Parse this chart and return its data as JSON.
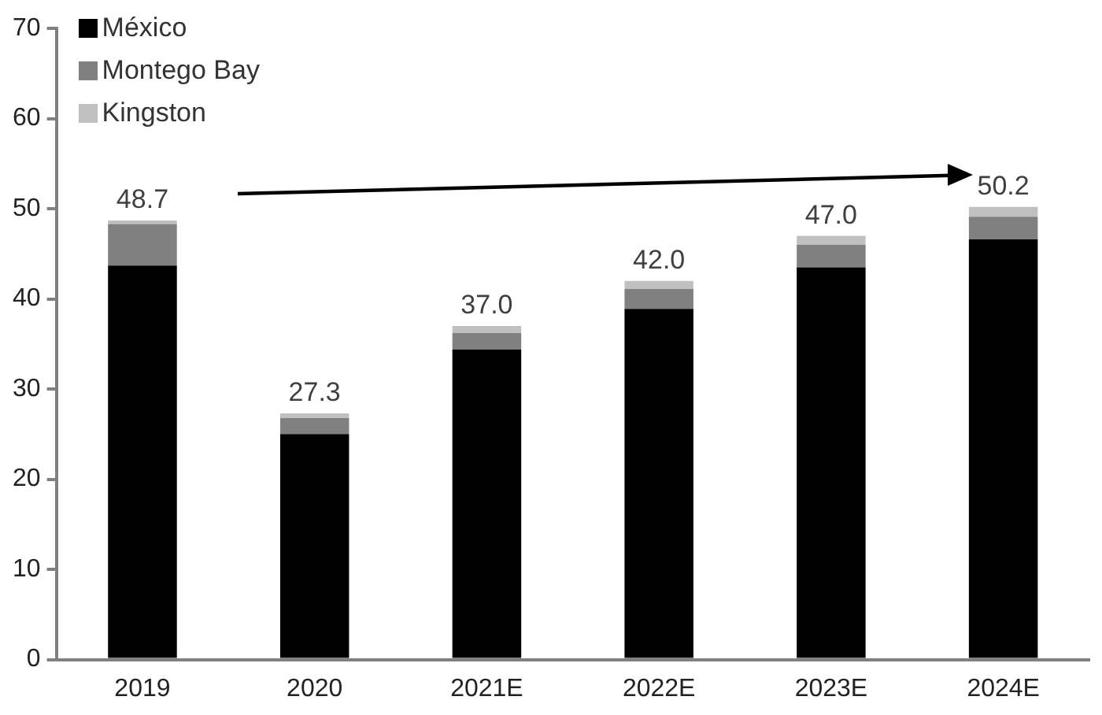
{
  "chart_data": {
    "type": "bar",
    "stacked": true,
    "categories": [
      "2019",
      "2020",
      "2021E",
      "2022E",
      "2023E",
      "2024E"
    ],
    "series": [
      {
        "name": "México",
        "color": "#000000",
        "values": [
          43.7,
          25.0,
          34.4,
          38.9,
          43.5,
          46.6
        ]
      },
      {
        "name": "Montego Bay",
        "color": "#808080",
        "values": [
          4.6,
          1.8,
          1.8,
          2.2,
          2.5,
          2.5
        ]
      },
      {
        "name": "Kingston",
        "color": "#c0c0c0",
        "values": [
          0.4,
          0.5,
          0.8,
          0.9,
          1.0,
          1.1
        ]
      }
    ],
    "totals": [
      "48.7",
      "27.3",
      "37.0",
      "42.0",
      "47.0",
      "50.2"
    ],
    "ylim": [
      0,
      70
    ],
    "yticks": [
      0,
      10,
      20,
      30,
      40,
      50,
      60,
      70
    ],
    "grid": false,
    "legend": "top left"
  }
}
